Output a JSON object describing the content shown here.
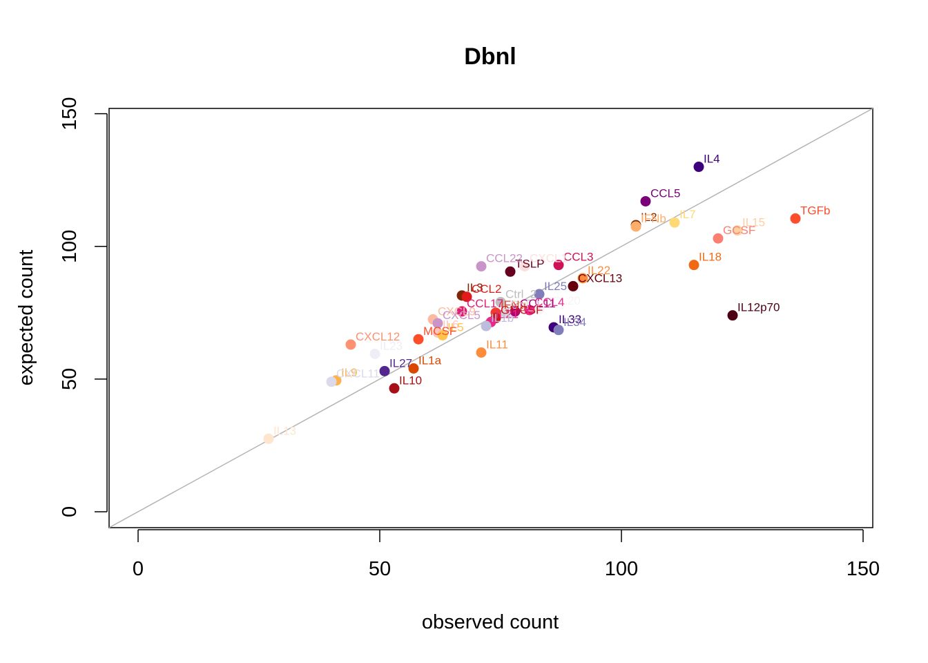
{
  "chart_data": {
    "type": "scatter",
    "title": "Dbnl",
    "xlabel": "observed count",
    "ylabel": "expected count",
    "xlim": [
      -6,
      152
    ],
    "ylim": [
      -6,
      152
    ],
    "xticks": [
      0,
      50,
      100,
      150
    ],
    "yticks": [
      0,
      50,
      100,
      150
    ],
    "reference_line": "y = x",
    "reference_line_color": "#b3b3b3",
    "grid": false,
    "points": [
      {
        "label": "IL4",
        "x": 116,
        "y": 130,
        "color": "#3f007d"
      },
      {
        "label": "CCL5",
        "x": 105,
        "y": 117,
        "color": "#7a0177"
      },
      {
        "label": "IL2",
        "x": 103,
        "y": 108,
        "color": "#7f2704"
      },
      {
        "label": "IFNb",
        "x": 103,
        "y": 107.5,
        "color": "#fdae6b"
      },
      {
        "label": "IL7",
        "x": 111,
        "y": 109,
        "color": "#fed976"
      },
      {
        "label": "TGFb",
        "x": 136,
        "y": 110.5,
        "color": "#fc4e2a"
      },
      {
        "label": "IL15",
        "x": 124,
        "y": 106,
        "color": "#fdd0a2"
      },
      {
        "label": "GCSF",
        "x": 120,
        "y": 103,
        "color": "#fb8072"
      },
      {
        "label": "IL18",
        "x": 115,
        "y": 93,
        "color": "#f16913"
      },
      {
        "label": "IL12p70",
        "x": 123,
        "y": 74,
        "color": "#4d0013"
      },
      {
        "label": "CCL3",
        "x": 87,
        "y": 93,
        "color": "#ce1256"
      },
      {
        "label": "IL22",
        "x": 92,
        "y": 88,
        "color": "#fd8d3c"
      },
      {
        "label": "CXCL13",
        "x": 90,
        "y": 85,
        "color": "#67000d"
      },
      {
        "label": "TSLP",
        "x": 77,
        "y": 90.5,
        "color": "#67001f"
      },
      {
        "label": "CCL22",
        "x": 71,
        "y": 92.5,
        "color": "#c994c7"
      },
      {
        "label": "CXCL1",
        "x": 80,
        "y": 92.5,
        "color": "#fde0dd"
      },
      {
        "label": "IL25",
        "x": 83,
        "y": 82,
        "color": "#807dba"
      },
      {
        "label": "Ctrl_2",
        "x": 75,
        "y": 79,
        "color": "#bdbdbd"
      },
      {
        "label": "IL3",
        "x": 67,
        "y": 81.5,
        "color": "#7f2704"
      },
      {
        "label": "CCL2",
        "x": 68,
        "y": 81,
        "color": "#e31a1c"
      },
      {
        "label": "CCL17",
        "x": 67,
        "y": 75.5,
        "color": "#dd1c77"
      },
      {
        "label": "CCL20",
        "x": 83,
        "y": 76.5,
        "color": "#f7f4f9"
      },
      {
        "label": "CCL4",
        "x": 81,
        "y": 76,
        "color": "#e7298a"
      },
      {
        "label": "CCL11",
        "x": 78,
        "y": 75.5,
        "color": "#ae017e"
      },
      {
        "label": "IFNg",
        "x": 74,
        "y": 75,
        "color": "#ef3b2c"
      },
      {
        "label": "Ctrl_1",
        "x": 76,
        "y": 75,
        "color": "#d9d9d9"
      },
      {
        "label": "GMCSF",
        "x": 74,
        "y": 73,
        "color": "#cb181d"
      },
      {
        "label": "IL21",
        "x": 73,
        "y": 71.5,
        "color": "#e7298a"
      },
      {
        "label": "IL1b",
        "x": 72,
        "y": 70,
        "color": "#bcbddc"
      },
      {
        "label": "IL33",
        "x": 86,
        "y": 69.5,
        "color": "#3f007d"
      },
      {
        "label": "IL34",
        "x": 87,
        "y": 68.5,
        "color": "#807dba"
      },
      {
        "label": "CXCL9",
        "x": 61,
        "y": 72.5,
        "color": "#fcbba1"
      },
      {
        "label": "CXCL5",
        "x": 62,
        "y": 71,
        "color": "#c994c7"
      },
      {
        "label": "IL6",
        "x": 62,
        "y": 67.5,
        "color": "#fcc5c0"
      },
      {
        "label": "IL5",
        "x": 63,
        "y": 66.5,
        "color": "#fec44f"
      },
      {
        "label": "MCSF",
        "x": 58,
        "y": 65,
        "color": "#fc4e2a"
      },
      {
        "label": "IL11",
        "x": 71,
        "y": 60,
        "color": "#fd8d3c"
      },
      {
        "label": "CXCL12",
        "x": 44,
        "y": 63,
        "color": "#fc9272"
      },
      {
        "label": "IL23",
        "x": 49,
        "y": 59.5,
        "color": "#efedf5"
      },
      {
        "label": "IL27",
        "x": 51,
        "y": 53,
        "color": "#54278f"
      },
      {
        "label": "IL1a",
        "x": 57,
        "y": 54,
        "color": "#d94801"
      },
      {
        "label": "IL10",
        "x": 53,
        "y": 46.5,
        "color": "#a50f15"
      },
      {
        "label": "IL9",
        "x": 41,
        "y": 49.5,
        "color": "#feb24c"
      },
      {
        "label": "CXCL11",
        "x": 40,
        "y": 49,
        "color": "#dadaeb"
      },
      {
        "label": "IL13",
        "x": 27,
        "y": 27.5,
        "color": "#fee6ce"
      }
    ]
  }
}
